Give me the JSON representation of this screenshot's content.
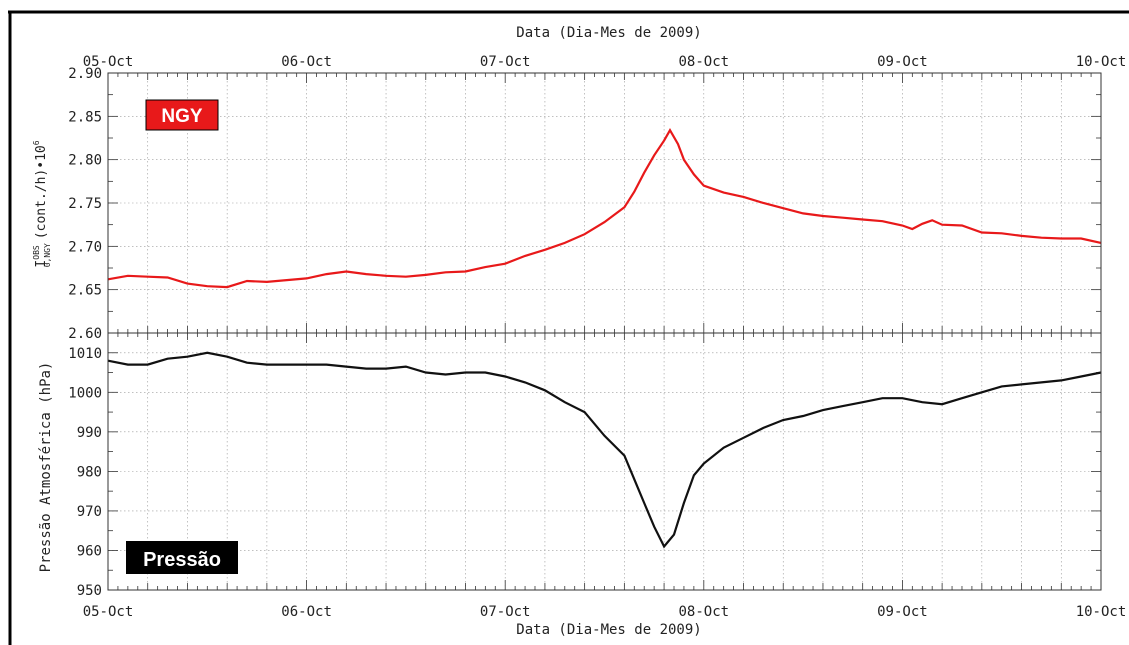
{
  "header": {
    "top_axis_title": "Data (Dia-Mes de 2009)"
  },
  "footer": {
    "bottom_axis_title": "Data (Dia-Mes de 2009)"
  },
  "colors": {
    "ngy_line": "#e8191a",
    "pressure_line": "#111111",
    "ngy_badge": "#e8191a",
    "pressure_badge": "#000000",
    "grid": "#9a9a9a"
  },
  "chart_data": [
    {
      "type": "line",
      "panel": "top",
      "badge_label": "NGY",
      "ylabel_main": "I",
      "ylabel_sup": "OBS",
      "ylabel_sub": "0,NGY",
      "ylabel_rest": "(cont./h)•10",
      "ylabel_exp": "6",
      "x_tick_labels": [
        "05-Oct",
        "06-Oct",
        "07-Oct",
        "08-Oct",
        "09-Oct",
        "10-Oct"
      ],
      "x_tick_values": [
        0,
        1,
        2,
        3,
        4,
        5
      ],
      "xlim": [
        0,
        5
      ],
      "ylim": [
        2.6,
        2.9
      ],
      "y_tick_labels": [
        "2.60",
        "2.65",
        "2.70",
        "2.75",
        "2.80",
        "2.85",
        "2.90"
      ],
      "y_ticks": [
        2.6,
        2.65,
        2.7,
        2.75,
        2.8,
        2.85,
        2.9
      ],
      "grid": true,
      "series": [
        {
          "x": [
            0,
            0.1,
            0.2,
            0.3,
            0.4,
            0.5,
            0.6,
            0.7,
            0.8,
            0.9,
            1.0,
            1.1,
            1.2,
            1.3,
            1.4,
            1.5,
            1.6,
            1.7,
            1.8,
            1.9,
            2.0,
            2.1,
            2.2,
            2.3,
            2.4,
            2.5,
            2.6,
            2.65,
            2.7,
            2.75,
            2.8,
            2.83,
            2.87,
            2.9,
            2.95,
            3.0,
            3.1,
            3.2,
            3.3,
            3.4,
            3.5,
            3.6,
            3.7,
            3.8,
            3.9,
            4.0,
            4.05,
            4.1,
            4.15,
            4.2,
            4.3,
            4.4,
            4.5,
            4.6,
            4.7,
            4.8,
            4.9,
            5.0
          ],
          "values": [
            2.662,
            2.666,
            2.665,
            2.664,
            2.657,
            2.654,
            2.653,
            2.66,
            2.659,
            2.661,
            2.663,
            2.668,
            2.671,
            2.668,
            2.666,
            2.665,
            2.667,
            2.67,
            2.671,
            2.676,
            2.68,
            2.689,
            2.696,
            2.704,
            2.714,
            2.728,
            2.745,
            2.763,
            2.785,
            2.805,
            2.822,
            2.834,
            2.818,
            2.8,
            2.783,
            2.77,
            2.762,
            2.757,
            2.75,
            2.744,
            2.738,
            2.735,
            2.733,
            2.731,
            2.729,
            2.724,
            2.72,
            2.726,
            2.73,
            2.725,
            2.724,
            2.716,
            2.715,
            2.712,
            2.71,
            2.709,
            2.709,
            2.704
          ]
        }
      ]
    },
    {
      "type": "line",
      "panel": "bottom",
      "badge_label": "Pressão",
      "ylabel": "Pressão Atmosférica  (hPa)",
      "x_tick_labels": [
        "05-Oct",
        "06-Oct",
        "07-Oct",
        "08-Oct",
        "09-Oct",
        "10-Oct"
      ],
      "x_tick_values": [
        0,
        1,
        2,
        3,
        4,
        5
      ],
      "xlim": [
        0,
        5
      ],
      "ylim": [
        950,
        1015
      ],
      "y_tick_labels": [
        "950",
        "960",
        "970",
        "980",
        "990",
        "1000",
        "1010"
      ],
      "y_ticks": [
        950,
        960,
        970,
        980,
        990,
        1000,
        1010
      ],
      "grid": true,
      "series": [
        {
          "x": [
            0,
            0.1,
            0.2,
            0.3,
            0.4,
            0.5,
            0.6,
            0.7,
            0.8,
            0.9,
            1.0,
            1.1,
            1.2,
            1.3,
            1.4,
            1.5,
            1.6,
            1.7,
            1.8,
            1.9,
            2.0,
            2.1,
            2.2,
            2.3,
            2.4,
            2.5,
            2.6,
            2.7,
            2.75,
            2.8,
            2.85,
            2.9,
            2.95,
            3.0,
            3.1,
            3.2,
            3.3,
            3.4,
            3.5,
            3.6,
            3.7,
            3.8,
            3.9,
            4.0,
            4.1,
            4.2,
            4.3,
            4.4,
            4.5,
            4.6,
            4.7,
            4.8,
            4.9,
            5.0
          ],
          "values": [
            1008,
            1007,
            1007,
            1008.5,
            1009,
            1010,
            1009,
            1007.5,
            1007,
            1007,
            1007,
            1007,
            1006.5,
            1006,
            1006,
            1006.5,
            1005,
            1004.5,
            1005,
            1005,
            1004,
            1002.5,
            1000.5,
            997.5,
            995,
            989,
            984,
            972,
            966,
            961,
            964,
            972,
            979,
            982,
            986,
            988.5,
            991,
            993,
            994,
            995.5,
            996.5,
            997.5,
            998.5,
            998.5,
            997.5,
            997,
            998.5,
            1000,
            1001.5,
            1002,
            1002.5,
            1003,
            1004,
            1005
          ]
        }
      ]
    }
  ]
}
